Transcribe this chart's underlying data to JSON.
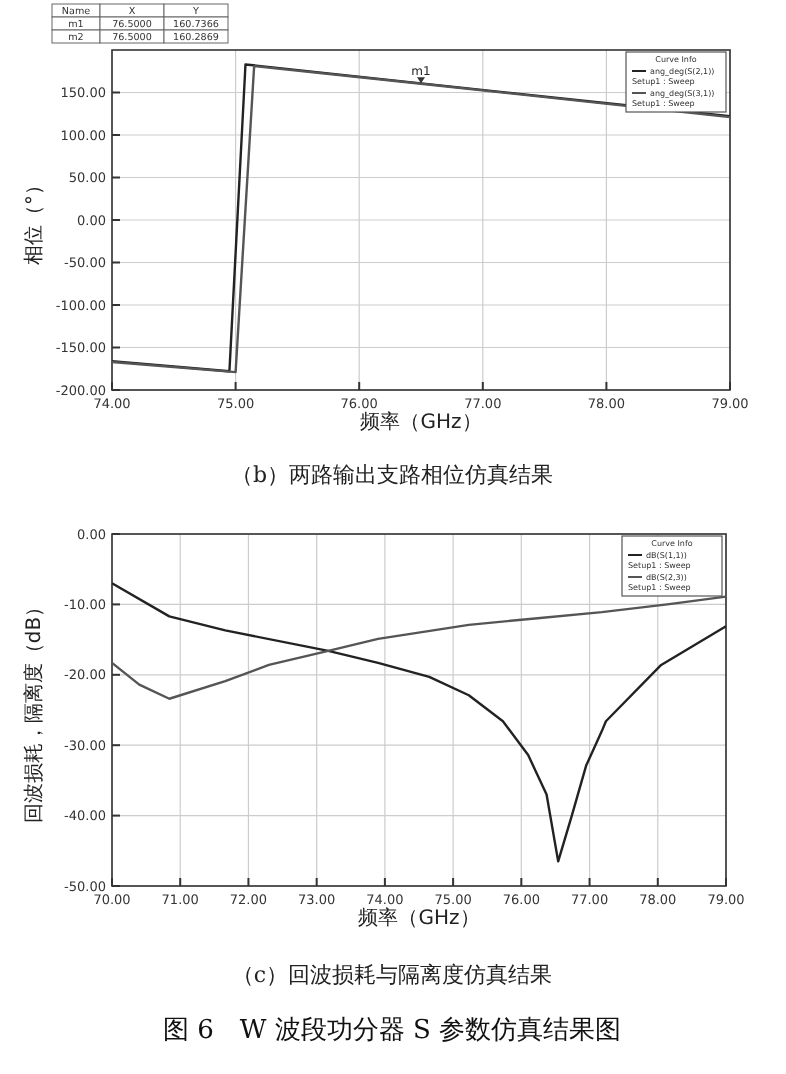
{
  "chart_data": [
    {
      "type": "line",
      "xlabel": "频率（GHz）",
      "ylabel": "相位（°）",
      "xlim": [
        74,
        79
      ],
      "ylim": [
        -200,
        200
      ],
      "xticks": [
        {
          "value": 74,
          "label": "74.00"
        },
        {
          "value": 75,
          "label": "75.00"
        },
        {
          "value": 76,
          "label": "76.00"
        },
        {
          "value": 77,
          "label": "77.00"
        },
        {
          "value": 78,
          "label": "78.00"
        },
        {
          "value": 79,
          "label": "79.00"
        }
      ],
      "yticks": [
        {
          "value": -200,
          "label": "-200.00"
        },
        {
          "value": -150,
          "label": "-150.00"
        },
        {
          "value": -100,
          "label": "-100.00"
        },
        {
          "value": -50,
          "label": "-50.00"
        },
        {
          "value": 0,
          "label": "0.00"
        },
        {
          "value": 50,
          "label": "50.00"
        },
        {
          "value": 100,
          "label": "100.00"
        },
        {
          "value": 150,
          "label": "150.00"
        }
      ],
      "grid": true,
      "legend": "top right",
      "legend_title": "Curve Info",
      "series": [
        {
          "name": "ang_deg(S(2,1))\nSetup1 : Sweep",
          "color": "#222222",
          "x": [
            74,
            74.95,
            75.08,
            76.5,
            79
          ],
          "values": [
            -166,
            -178,
            183,
            160.7,
            122
          ]
        },
        {
          "name": "ang_deg(S(3,1))\nSetup1 : Sweep",
          "color": "#555555",
          "x": [
            74,
            75.0,
            75.15,
            76.5,
            79
          ],
          "values": [
            -167,
            -179,
            181,
            160.3,
            121
          ]
        }
      ],
      "annotations": [
        "（b）两路输出支路相位仿真结果",
        "Name",
        "X",
        "Y",
        "m1",
        "76.5000",
        "160.7366",
        "m2",
        "76.5000",
        "160.2869",
        {
          "text": "m1",
          "x": 76.5,
          "y": 160.7366
        }
      ]
    },
    {
      "type": "line",
      "xlabel": "频率（GHz）",
      "ylabel": "回波损耗，隔离度（dB）",
      "xlim": [
        70,
        79
      ],
      "ylim": [
        -50,
        0
      ],
      "xticks": [
        {
          "value": 70,
          "label": "70.00"
        },
        {
          "value": 71,
          "label": "71.00"
        },
        {
          "value": 72,
          "label": "72.00"
        },
        {
          "value": 73,
          "label": "73.00"
        },
        {
          "value": 74,
          "label": "74.00"
        },
        {
          "value": 75,
          "label": "75.00"
        },
        {
          "value": 76,
          "label": "76.00"
        },
        {
          "value": 77,
          "label": "77.00"
        },
        {
          "value": 78,
          "label": "78.00"
        },
        {
          "value": 79,
          "label": "79.00"
        }
      ],
      "yticks": [
        {
          "value": -50,
          "label": "-50.00"
        },
        {
          "value": -40,
          "label": "-40.00"
        },
        {
          "value": -30,
          "label": "-30.00"
        },
        {
          "value": -20,
          "label": "-20.00"
        },
        {
          "value": -10,
          "label": "-10.00"
        },
        {
          "value": 0,
          "label": "0.00"
        }
      ],
      "grid": true,
      "legend": "top right",
      "legend_title": "Curve Info",
      "series": [
        {
          "name": "dB(S(1,1))\nSetup1 : Sweep",
          "color": "#222222",
          "x": [
            70,
            70.84,
            71.66,
            73.17,
            73.9,
            74.65,
            75.23,
            75.73,
            76.1,
            76.37,
            76.54,
            76.74,
            76.95,
            77.18,
            77.24,
            78.05,
            79
          ],
          "values": [
            -7.0,
            -11.7,
            -13.7,
            -16.6,
            -18.3,
            -20.3,
            -22.9,
            -26.6,
            -31.4,
            -37,
            -46.5,
            -40,
            -32.9,
            -28,
            -26.6,
            -18.6,
            -13.1
          ]
        },
        {
          "name": "dB(S(2,3))\nSetup1 : Sweep",
          "color": "#555555",
          "x": [
            70,
            70.4,
            70.84,
            71.66,
            72.3,
            73.17,
            73.9,
            75.23,
            76.2,
            77.18,
            78.14,
            79
          ],
          "values": [
            -18.3,
            -21.4,
            -23.4,
            -20.9,
            -18.6,
            -16.6,
            -14.9,
            -12.9,
            -12,
            -11.1,
            -10,
            -8.9
          ]
        }
      ],
      "annotations": [
        "（c）回波损耗与隔离度仿真结果",
        "图 6　W 波段功分器 S 参数仿真结果图"
      ]
    }
  ]
}
